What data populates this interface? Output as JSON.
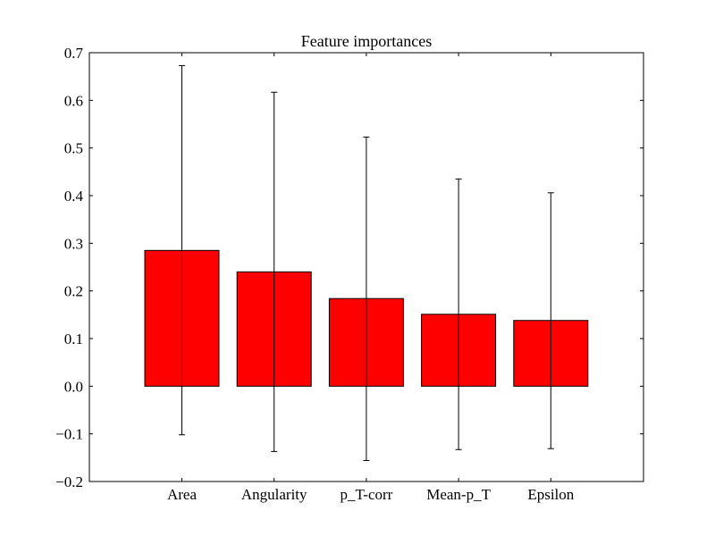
{
  "chart_data": {
    "type": "bar",
    "title": "Feature importances",
    "xlabel": "",
    "ylabel": "",
    "categories": [
      "Area",
      "Angularity",
      "p_T-corr",
      "Mean-p_T",
      "Epsilon"
    ],
    "values": [
      0.285,
      0.24,
      0.184,
      0.151,
      0.138
    ],
    "error_low": [
      -0.102,
      -0.137,
      -0.156,
      -0.133,
      -0.131
    ],
    "error_high": [
      0.673,
      0.617,
      0.523,
      0.435,
      0.406
    ],
    "ylim": [
      -0.2,
      0.7
    ],
    "yticks": [
      -0.2,
      -0.1,
      0.0,
      0.1,
      0.2,
      0.3,
      0.4,
      0.5,
      0.6,
      0.7
    ],
    "ytick_labels": [
      "−0.2",
      "−0.1",
      "0.0",
      "0.1",
      "0.2",
      "0.3",
      "0.4",
      "0.5",
      "0.6",
      "0.7"
    ],
    "grid": false,
    "legend": "none",
    "colors": {
      "bar_fill": "#ff0000",
      "bar_edge": "#000000",
      "error_bar": "#000000"
    }
  }
}
